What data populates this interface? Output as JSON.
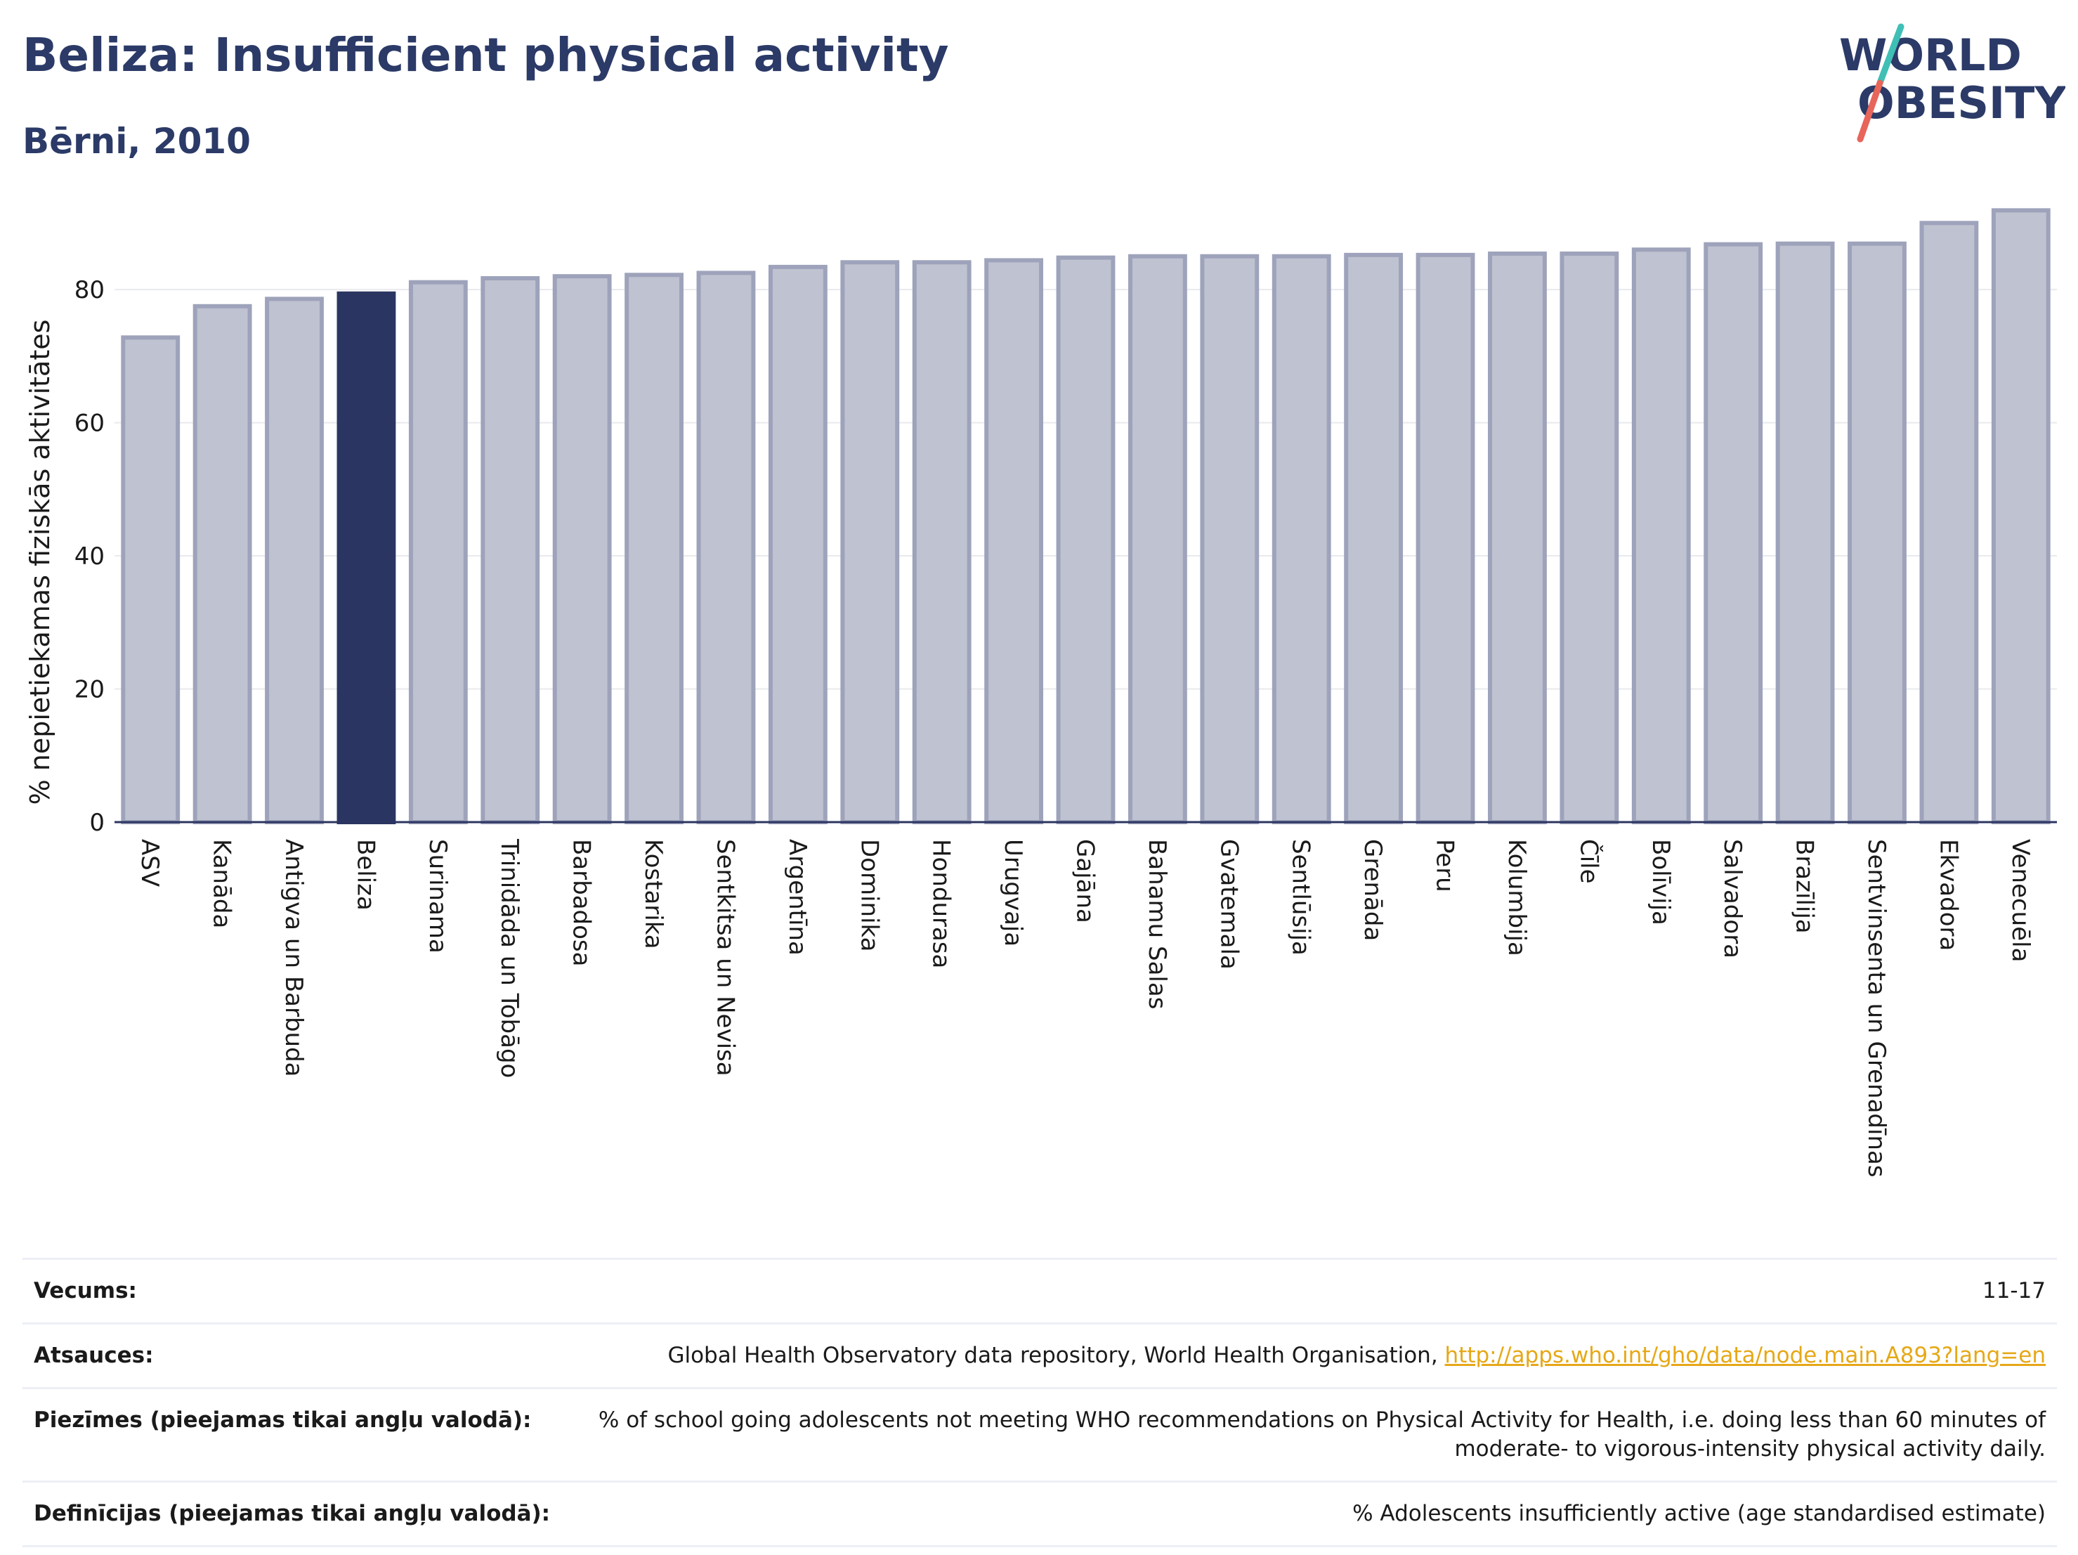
{
  "header": {
    "title": "Beliza: Insufficient physical activity",
    "subtitle": "Bērni, 2010"
  },
  "logo": {
    "line1": "WORLD",
    "line2": "OBESITY",
    "accent_teal": "#3fbfb5",
    "accent_coral": "#e8655a",
    "text_color": "#2b3a67"
  },
  "chart_data": {
    "type": "bar",
    "ylabel": "% nepietiekamas fiziskās aktivitātes",
    "xlabel": "",
    "ylim": [
      0,
      95
    ],
    "yticks": [
      0,
      20,
      40,
      60,
      80
    ],
    "grid": true,
    "highlight": "Beliza",
    "colors": {
      "bar": "#bfc2d0",
      "bar_stroke": "#9ea3bb",
      "highlight": "#2b3561"
    },
    "categories": [
      "ASV",
      "Kanāda",
      "Antigva un Barbuda",
      "Beliza",
      "Surinama",
      "Trinidāda un Tobāgo",
      "Barbadosa",
      "Kostarika",
      "Sentkitsa un Nevisa",
      "Argentīna",
      "Dominika",
      "Hondurasa",
      "Urugvaja",
      "Gajāna",
      "Bahamu Salas",
      "Gvatemala",
      "Sentlūsija",
      "Grenāda",
      "Peru",
      "Kolumbija",
      "Čīle",
      "Bolīvija",
      "Salvadora",
      "Brazīlija",
      "Sentvinsenta un Grenadīnas",
      "Ekvadora",
      "Venecuēla"
    ],
    "values": [
      72.8,
      77.5,
      78.6,
      79.4,
      81.1,
      81.7,
      82.0,
      82.2,
      82.5,
      83.4,
      84.1,
      84.1,
      84.4,
      84.8,
      85.0,
      85.0,
      85.0,
      85.2,
      85.2,
      85.4,
      85.4,
      86.0,
      86.8,
      86.9,
      86.9,
      90.0,
      91.9
    ]
  },
  "info": {
    "age_label": "Vecums:",
    "age_value": "11-17",
    "sources_label": "Atsauces:",
    "sources_text": "Global Health Observatory data repository, World Health Organisation, ",
    "sources_link": "http://apps.who.int/gho/data/node.main.A893?lang=en",
    "notes_label": "Piezīmes (pieejamas tikai angļu valodā):",
    "notes_value": "% of school going adolescents not meeting WHO recommendations on Physical Activity for Health, i.e. doing less than 60 minutes of moderate- to vigorous-intensity physical activity daily.",
    "definitions_label": "Definīcijas (pieejamas tikai angļu valodā):",
    "definitions_value": "% Adolescents insufficiently active (age standardised estimate)"
  }
}
